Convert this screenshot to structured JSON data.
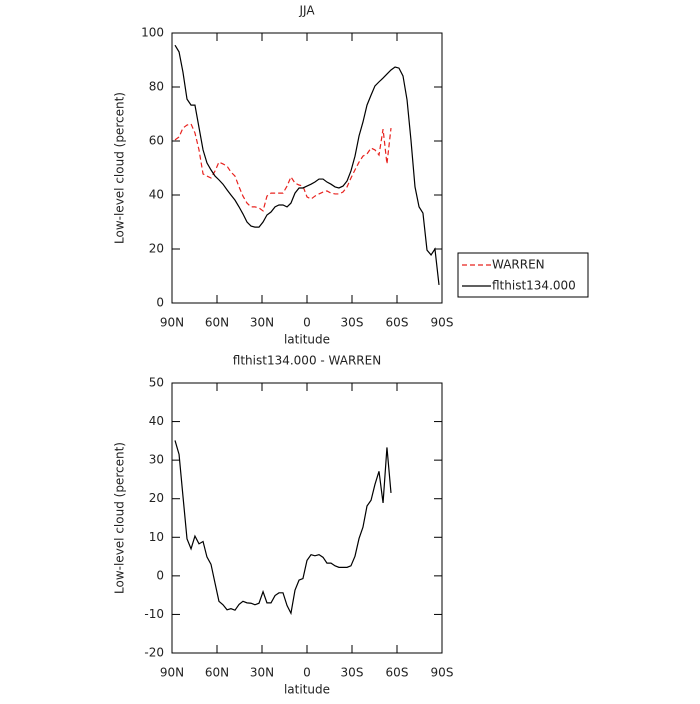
{
  "chart_data": [
    {
      "type": "line",
      "title": "JJA",
      "xlabel": "latitude",
      "ylabel": "Low-level cloud (percent)",
      "x": [
        88,
        85.3,
        82.7,
        80,
        77.3,
        74.7,
        72,
        69.3,
        66.7,
        64,
        61.3,
        58.7,
        56,
        53.3,
        50.7,
        48,
        45.3,
        42.7,
        40,
        37.3,
        34.7,
        32,
        29.3,
        26.7,
        24,
        21.3,
        18.7,
        16,
        13.3,
        10.7,
        8,
        5.3,
        2.7,
        0,
        -2.7,
        -5.3,
        -8,
        -10.7,
        -13.3,
        -16,
        -18.7,
        -21.3,
        -24,
        -26.7,
        -29.3,
        -32,
        -34.7,
        -37.3,
        -40,
        -42.7,
        -45.3,
        -48,
        -50.7,
        -53.3,
        -56,
        -58.7,
        -61.3,
        -64,
        -66.7,
        -69.3,
        -72,
        -74.7,
        -77.3,
        -80,
        -82.7,
        -85.3,
        -88
      ],
      "xlim": [
        90,
        -90
      ],
      "xticks": [
        {
          "value": 90,
          "label": "90N"
        },
        {
          "value": 60,
          "label": "60N"
        },
        {
          "value": 30,
          "label": "30N"
        },
        0,
        {
          "value": -30,
          "label": "30S"
        },
        {
          "value": -60,
          "label": "60S"
        },
        {
          "value": -90,
          "label": "90S"
        }
      ],
      "ylim": [
        0,
        100
      ],
      "yticks": [
        0,
        20,
        40,
        60,
        80,
        100
      ],
      "legend_position": "right",
      "series": [
        {
          "name": "WARREN",
          "color": "#e8231f",
          "linestyle": "dashed",
          "values": [
            60.4,
            61.5,
            64.8,
            65.9,
            66.3,
            63,
            56.7,
            47.8,
            47,
            46.3,
            48.9,
            52.2,
            51.5,
            50.7,
            48.5,
            47,
            43,
            39.6,
            37,
            35.6,
            35.6,
            35.2,
            34.1,
            39.6,
            40.7,
            40.7,
            40.7,
            40.7,
            43.3,
            46.7,
            44.4,
            43.7,
            43.3,
            39.3,
            38.5,
            39.6,
            40.4,
            41.1,
            41.5,
            40.7,
            40.4,
            40.4,
            41.1,
            43,
            46.3,
            49.3,
            52.2,
            54.4,
            55.2,
            57.4,
            56.7,
            54.8,
            64.4,
            51.5,
            64.8,
            null,
            null,
            null,
            null,
            null,
            null,
            null,
            null,
            null,
            null,
            null,
            null
          ]
        },
        {
          "name": "flthist134.000",
          "color": "#000000",
          "linestyle": "solid",
          "values": [
            95.5,
            93,
            85.5,
            75.5,
            73.3,
            73.3,
            65,
            56.7,
            51.9,
            49.3,
            47,
            45.6,
            44,
            41.9,
            40,
            38.1,
            35.6,
            33,
            30,
            28.5,
            28.1,
            28.1,
            30,
            32.6,
            33.7,
            35.6,
            36.3,
            36.3,
            35.6,
            37,
            40.7,
            42.6,
            42.6,
            43.3,
            44,
            44.8,
            45.9,
            45.9,
            44.8,
            44,
            43,
            42.6,
            43.3,
            45.2,
            48.9,
            54.4,
            61.9,
            67,
            73.3,
            77,
            80.4,
            81.9,
            83.3,
            84.8,
            86.3,
            87.4,
            87,
            84.1,
            75.2,
            60.4,
            43,
            35.6,
            33.3,
            19.6,
            17.8,
            20,
            6.7
          ]
        }
      ]
    },
    {
      "type": "line",
      "title": "flthist134.000 - WARREN",
      "xlabel": "latitude",
      "ylabel": "Low-level cloud (percent)",
      "x": [
        88,
        85.3,
        82.7,
        80,
        77.3,
        74.7,
        72,
        69.3,
        66.7,
        64,
        61.3,
        58.7,
        56,
        53.3,
        50.7,
        48,
        45.3,
        42.7,
        40,
        37.3,
        34.7,
        32,
        29.3,
        26.7,
        24,
        21.3,
        18.7,
        16,
        13.3,
        10.7,
        8,
        5.3,
        2.7,
        0,
        -2.7,
        -5.3,
        -8,
        -10.7,
        -13.3,
        -16,
        -18.7,
        -21.3,
        -24,
        -26.7,
        -29.3,
        -32,
        -34.7,
        -37.3,
        -40,
        -42.7,
        -45.3,
        -48,
        -50.7,
        -53.3,
        -56,
        -58.7,
        -61.3,
        -64,
        -66.7,
        -69.3,
        -72,
        -74.7,
        -77.3,
        -80,
        -82.7,
        -85.3,
        -88
      ],
      "xlim": [
        90,
        -90
      ],
      "xticks": [
        {
          "value": 90,
          "label": "90N"
        },
        {
          "value": 60,
          "label": "60N"
        },
        {
          "value": 30,
          "label": "30N"
        },
        0,
        {
          "value": -30,
          "label": "30S"
        },
        {
          "value": -60,
          "label": "60S"
        },
        {
          "value": -90,
          "label": "90S"
        }
      ],
      "ylim": [
        -20,
        50
      ],
      "yticks": [
        -20,
        -10,
        0,
        10,
        20,
        30,
        40,
        50
      ],
      "series": [
        {
          "color": "#000000",
          "linestyle": "solid",
          "values": [
            35.1,
            31.5,
            20.7,
            9.6,
            7,
            10.3,
            8.3,
            8.9,
            4.9,
            3,
            -1.9,
            -6.6,
            -7.5,
            -8.8,
            -8.5,
            -8.9,
            -7.4,
            -6.6,
            -7,
            -7.1,
            -7.5,
            -7.1,
            -4.1,
            -7,
            -7,
            -5.1,
            -4.4,
            -4.4,
            -7.7,
            -9.7,
            -3.7,
            -1.1,
            -0.7,
            4,
            5.5,
            5.2,
            5.5,
            4.8,
            3.3,
            3.3,
            2.6,
            2.2,
            2.2,
            2.2,
            2.6,
            5.1,
            9.7,
            12.6,
            18.1,
            19.6,
            23.7,
            27.1,
            18.9,
            33.3,
            21.5,
            null,
            null,
            null,
            null,
            null,
            null,
            null,
            null,
            null,
            null,
            null,
            null
          ]
        }
      ]
    }
  ]
}
